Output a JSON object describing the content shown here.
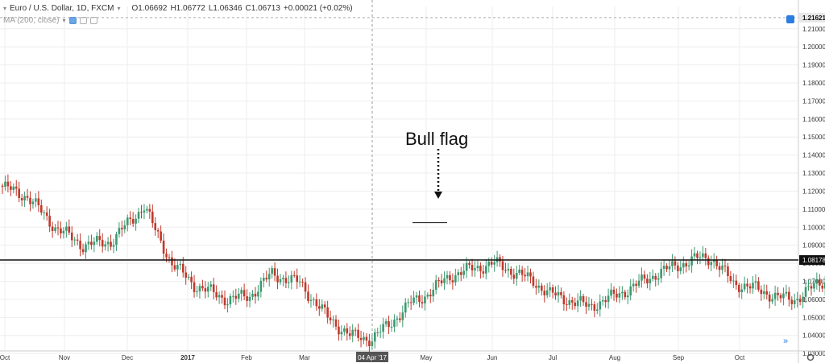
{
  "legend": {
    "symbol": "Euro / U.S. Dollar, 1D, FXCM",
    "open": "O1.06692",
    "high": "H1.06772",
    "low": "L1.06346",
    "close": "C1.06713",
    "change": "+0.00021 (+0.02%)",
    "indicator": "MA (200, close)"
  },
  "colors": {
    "up": "#3d9970",
    "down": "#c0392b",
    "grid": "#eeeeee",
    "axis_text": "#333333"
  },
  "chart_data": {
    "type": "candlestick",
    "yaxis": {
      "ylim": [
        1.0314,
        1.2224
      ],
      "ticks": [
        "1.21000",
        "1.20000",
        "1.19000",
        "1.18000",
        "1.17000",
        "1.16000",
        "1.15000",
        "1.14000",
        "1.13000",
        "1.12000",
        "1.11000",
        "1.10000",
        "1.09000",
        "1.08000",
        "1.07000",
        "1.06000",
        "1.05000",
        "1.04000",
        "1.03000"
      ],
      "current_price": "1.21621",
      "level_price": "1.08178"
    },
    "xaxis": {
      "labels": [
        "Oct",
        "Nov",
        "Dec",
        "2017",
        "Feb",
        "Mar",
        "May",
        "Jun",
        "Jul",
        "Aug",
        "Sep",
        "Oct"
      ],
      "crosshair_label": "04 Apr '17"
    },
    "horizontal_line": 1.0818,
    "annotation": {
      "text": "Bull flag"
    },
    "flag_pole_line": 1.1025,
    "waypoints": [
      [
        0,
        1.123
      ],
      [
        10,
        1.117
      ],
      [
        20,
        1.1
      ],
      [
        30,
        1.09
      ],
      [
        40,
        1.092
      ],
      [
        48,
        1.105
      ],
      [
        52,
        1.112
      ],
      [
        56,
        1.098
      ],
      [
        62,
        1.08
      ],
      [
        70,
        1.068
      ],
      [
        82,
        1.06
      ],
      [
        90,
        1.062
      ],
      [
        98,
        1.074
      ],
      [
        108,
        1.069
      ],
      [
        118,
        1.05
      ],
      [
        126,
        1.04
      ],
      [
        134,
        1.038
      ],
      [
        140,
        1.046
      ],
      [
        148,
        1.058
      ],
      [
        154,
        1.063
      ],
      [
        162,
        1.073
      ],
      [
        170,
        1.077
      ],
      [
        178,
        1.08
      ],
      [
        184,
        1.076
      ],
      [
        192,
        1.07
      ],
      [
        198,
        1.063
      ],
      [
        206,
        1.059
      ],
      [
        212,
        1.056
      ],
      [
        220,
        1.061
      ],
      [
        228,
        1.067
      ],
      [
        236,
        1.074
      ],
      [
        244,
        1.079
      ],
      [
        252,
        1.083
      ],
      [
        256,
        1.083
      ],
      [
        264,
        1.069
      ],
      [
        272,
        1.066
      ],
      [
        280,
        1.061
      ],
      [
        286,
        1.06
      ],
      [
        294,
        1.068
      ],
      [
        300,
        1.073
      ],
      [
        304,
        1.089
      ],
      [
        310,
        1.093
      ],
      [
        314,
        1.089
      ],
      [
        318,
        1.09
      ],
      [
        322,
        1.091
      ],
      [
        325,
        1.094
      ],
      [
        328,
        1.086
      ],
      [
        332,
        1.099
      ],
      [
        336,
        1.112
      ],
      [
        344,
        1.124
      ],
      [
        352,
        1.121
      ],
      [
        360,
        1.124
      ],
      [
        366,
        1.128
      ],
      [
        370,
        1.121
      ],
      [
        374,
        1.119
      ],
      [
        380,
        1.115
      ],
      [
        386,
        1.114
      ],
      [
        392,
        1.124
      ],
      [
        398,
        1.144
      ],
      [
        404,
        1.137
      ],
      [
        410,
        1.14
      ],
      [
        418,
        1.143
      ],
      [
        422,
        1.152
      ],
      [
        428,
        1.16
      ],
      [
        434,
        1.17
      ],
      [
        438,
        1.178
      ],
      [
        444,
        1.184
      ],
      [
        452,
        1.18
      ],
      [
        458,
        1.178
      ],
      [
        462,
        1.176
      ],
      [
        468,
        1.182
      ],
      [
        474,
        1.178
      ],
      [
        480,
        1.195
      ],
      [
        486,
        1.188
      ],
      [
        490,
        1.191
      ],
      [
        494,
        1.201
      ],
      [
        498,
        1.205
      ],
      [
        504,
        1.192
      ],
      [
        508,
        1.198
      ],
      [
        514,
        1.189
      ],
      [
        520,
        1.176
      ],
      [
        526,
        1.175
      ],
      [
        532,
        1.172
      ],
      [
        538,
        1.184
      ],
      [
        544,
        1.182
      ],
      [
        550,
        1.177
      ],
      [
        556,
        1.176
      ],
      [
        560,
        1.183
      ],
      [
        568,
        1.16
      ]
    ],
    "gaps": [
      [
        300,
        304
      ]
    ]
  }
}
